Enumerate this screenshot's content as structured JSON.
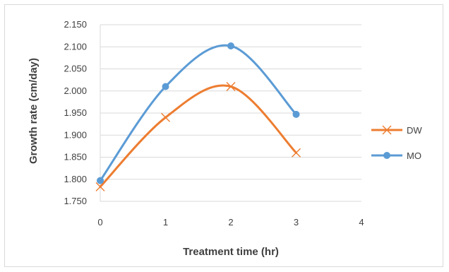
{
  "chart_data": {
    "type": "scatter",
    "xlabel": "Treatment time (hr)",
    "ylabel": "Growth rate (cm/day)",
    "xlim": [
      0,
      4
    ],
    "ylim": [
      1.75,
      2.15
    ],
    "x_ticks": [
      "0",
      "1",
      "2",
      "3",
      "4"
    ],
    "y_ticks": [
      "1.750",
      "1.800",
      "1.850",
      "1.900",
      "1.950",
      "2.000",
      "2.050",
      "2.100",
      "2.150"
    ],
    "grid": "horizontal",
    "smooth_lines": true,
    "legend_position": "right",
    "series": [
      {
        "name": "DW",
        "color": "#ed7d31",
        "marker": "x",
        "x": [
          0,
          1,
          2,
          3
        ],
        "y": [
          1.783,
          1.94,
          2.01,
          1.86
        ]
      },
      {
        "name": "MO",
        "color": "#5b9bd5",
        "marker": "circle",
        "x": [
          0,
          1,
          2,
          3
        ],
        "y": [
          1.797,
          2.01,
          2.102,
          1.947
        ]
      }
    ]
  }
}
